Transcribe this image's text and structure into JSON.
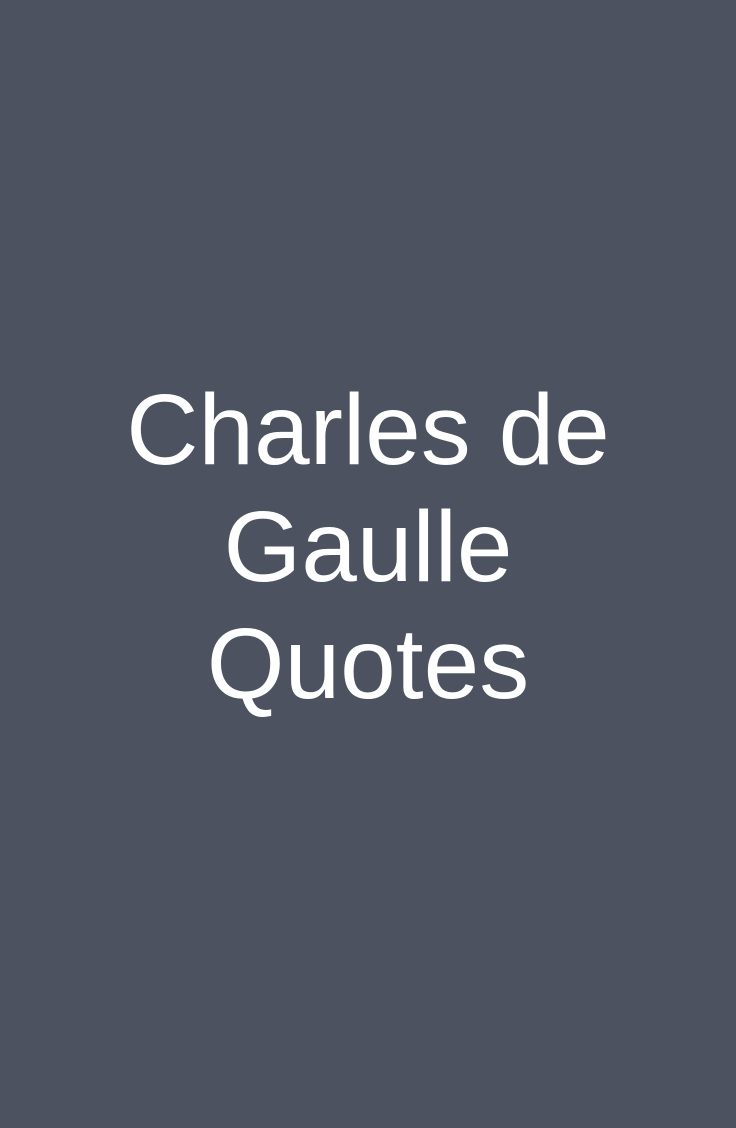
{
  "title": {
    "lines": [
      "Charles de",
      "Gaulle",
      "Quotes"
    ]
  },
  "colors": {
    "background": "#4c5260",
    "text": "#ffffff"
  }
}
